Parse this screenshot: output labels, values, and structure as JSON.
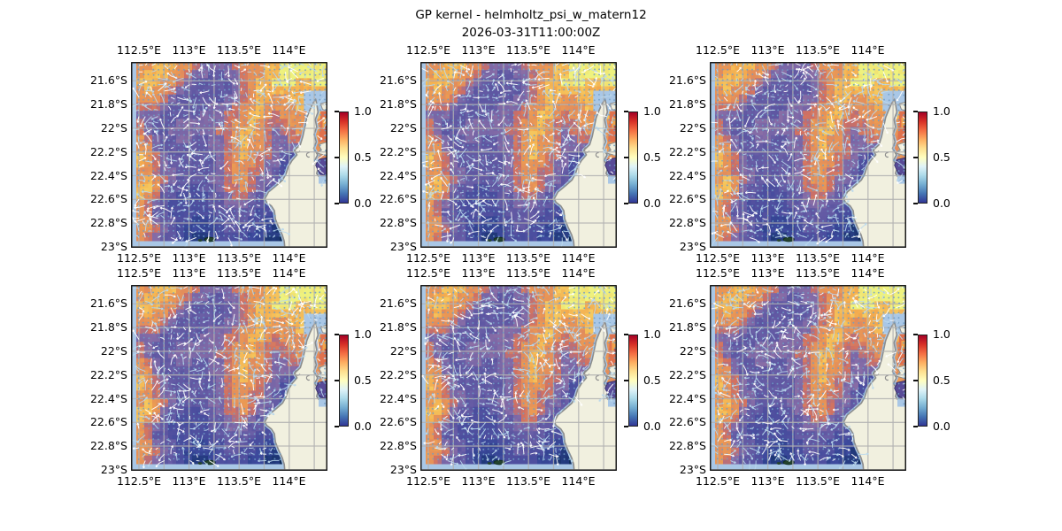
{
  "figure": {
    "title": "GP kernel - helmholtz_psi_w_matern12",
    "subtitle": "2026-03-31T11:00:00Z",
    "background": "#ffffff"
  },
  "axes": {
    "x_tick_labels": [
      "112.5°E",
      "113°E",
      "113.5°E",
      "114°E"
    ],
    "y_tick_labels": [
      "21.6°S",
      "21.8°S",
      "22°S",
      "22.2°S",
      "22.4°S",
      "22.6°S",
      "22.8°S",
      "23°S"
    ]
  },
  "colorbar": {
    "tick_labels": [
      "1.0",
      "0.5",
      "0.0"
    ],
    "range": [
      0,
      1
    ],
    "stops_bottom_to_top": [
      "#313695",
      "#4575b4",
      "#74add1",
      "#abd9e9",
      "#e0f3f8",
      "#ffffbf",
      "#fee090",
      "#fdae61",
      "#f46d43",
      "#d73027",
      "#a50026"
    ]
  },
  "colors": {
    "ocean": "#a9c7e6",
    "land": "#f1f0df",
    "coast": "#8c8c8c",
    "grid_line": "rgba(178,178,178,0.85)",
    "frame": "#1a1a1a",
    "dot": "#6e9ec6",
    "arrow_white": "rgba(255,255,255,0.92)",
    "arrow_blue": "rgba(186,216,236,0.9)",
    "island": "#24422e",
    "island_edge": "#123020",
    "purple_blob": "#584a97",
    "orange_blob": "#e0714d",
    "orange_blob_inner": "#f2a44c",
    "red_spec": "#c43a32"
  },
  "panels": [
    {
      "name": "panel-r1c1",
      "row": 0,
      "col": 0,
      "seed": 11
    },
    {
      "name": "panel-r1c2",
      "row": 0,
      "col": 1,
      "seed": 29
    },
    {
      "name": "panel-r1c3",
      "row": 0,
      "col": 2,
      "seed": 47
    },
    {
      "name": "panel-r2c1",
      "row": 1,
      "col": 0,
      "seed": 61
    },
    {
      "name": "panel-r2c2",
      "row": 1,
      "col": 1,
      "seed": 83
    },
    {
      "name": "panel-r2c3",
      "row": 1,
      "col": 2,
      "seed": 101
    }
  ],
  "chart_data": {
    "type": "heatmap",
    "title": "GP kernel - helmholtz_psi_w_matern12",
    "subtitle": "2026-03-31T11:00:00Z",
    "x_ticks": [
      "112.5°E",
      "113°E",
      "113.5°E",
      "114°E"
    ],
    "y_ticks": [
      "21.6°S",
      "21.8°S",
      "22°S",
      "22.2°S",
      "22.4°S",
      "22.6°S",
      "22.8°S",
      "23°S"
    ],
    "lon_range_deg_e": [
      112.42,
      114.38
    ],
    "lat_range_deg_s": [
      21.44,
      23.01
    ],
    "value_range": [
      0,
      1
    ],
    "legend_position": "right of each panel",
    "grid_note": "digit/9 = normalized field value 0..1; 22 rows top(21.44S)->bottom(23.01S), 24 cols left(112.42E)->right(114.38E); same background field repeated in all 6 panels, overlaid with velocity-arrow texture",
    "field_rows": [
      "778887765555677788999999",
      "788877655445567788999999",
      "888776544444567889998899",
      "787765444444567888888888",
      "777654444445567887788888",
      "666544444555677877778888",
      "555444445556678876777788",
      "654445555556778766677777",
      "654455555566788765667777",
      "765445544556787765566777",
      "775444444556787765555577",
      "876544444456787665434477",
      "876544444456777655333444",
      "776554444456776654333344",
      "787654444556776554333333",
      "887544334456676544332233",
      "876443333445665443322222",
      "765433333445554433221122",
      "764433333344444332211111",
      "775443322334443322111111",
      "776543222234433221100111",
      "765443211233332211000011"
    ],
    "cmap_stops": [
      [
        0.0,
        "#0e2a55"
      ],
      [
        0.12,
        "#243b80"
      ],
      [
        0.25,
        "#3e4a9e"
      ],
      [
        0.38,
        "#55519f"
      ],
      [
        0.5,
        "#6f62a8"
      ],
      [
        0.6,
        "#8d6fa5"
      ],
      [
        0.67,
        "#cf6f62"
      ],
      [
        0.74,
        "#e08a5e"
      ],
      [
        0.85,
        "#f2a44c"
      ],
      [
        0.93,
        "#f6cd60"
      ],
      [
        1.0,
        "#eef27e"
      ]
    ],
    "land_polygon_frac": [
      [
        0.94,
        0.2
      ],
      [
        0.925,
        0.225
      ],
      [
        0.91,
        0.26
      ],
      [
        0.895,
        0.3
      ],
      [
        0.885,
        0.35
      ],
      [
        0.875,
        0.4
      ],
      [
        0.862,
        0.445
      ],
      [
        0.832,
        0.475
      ],
      [
        0.845,
        0.5
      ],
      [
        0.82,
        0.53
      ],
      [
        0.8,
        0.565
      ],
      [
        0.79,
        0.6
      ],
      [
        0.772,
        0.635
      ],
      [
        0.74,
        0.665
      ],
      [
        0.7,
        0.7
      ],
      [
        0.682,
        0.735
      ],
      [
        0.69,
        0.755
      ],
      [
        0.715,
        0.775
      ],
      [
        0.73,
        0.8
      ],
      [
        0.735,
        0.845
      ],
      [
        0.75,
        0.885
      ],
      [
        0.77,
        0.93
      ],
      [
        0.78,
        0.965
      ],
      [
        0.783,
        1.0
      ],
      [
        1.0,
        1.0
      ],
      [
        1.0,
        0.655
      ],
      [
        0.97,
        0.635
      ],
      [
        0.945,
        0.6
      ],
      [
        0.955,
        0.565
      ],
      [
        0.935,
        0.53
      ],
      [
        0.95,
        0.5
      ],
      [
        0.93,
        0.465
      ],
      [
        0.943,
        0.43
      ],
      [
        0.932,
        0.39
      ],
      [
        0.945,
        0.35
      ],
      [
        0.938,
        0.31
      ],
      [
        0.952,
        0.27
      ],
      [
        0.947,
        0.235
      ]
    ],
    "island_center_frac": [
      0.385,
      0.955
    ]
  }
}
